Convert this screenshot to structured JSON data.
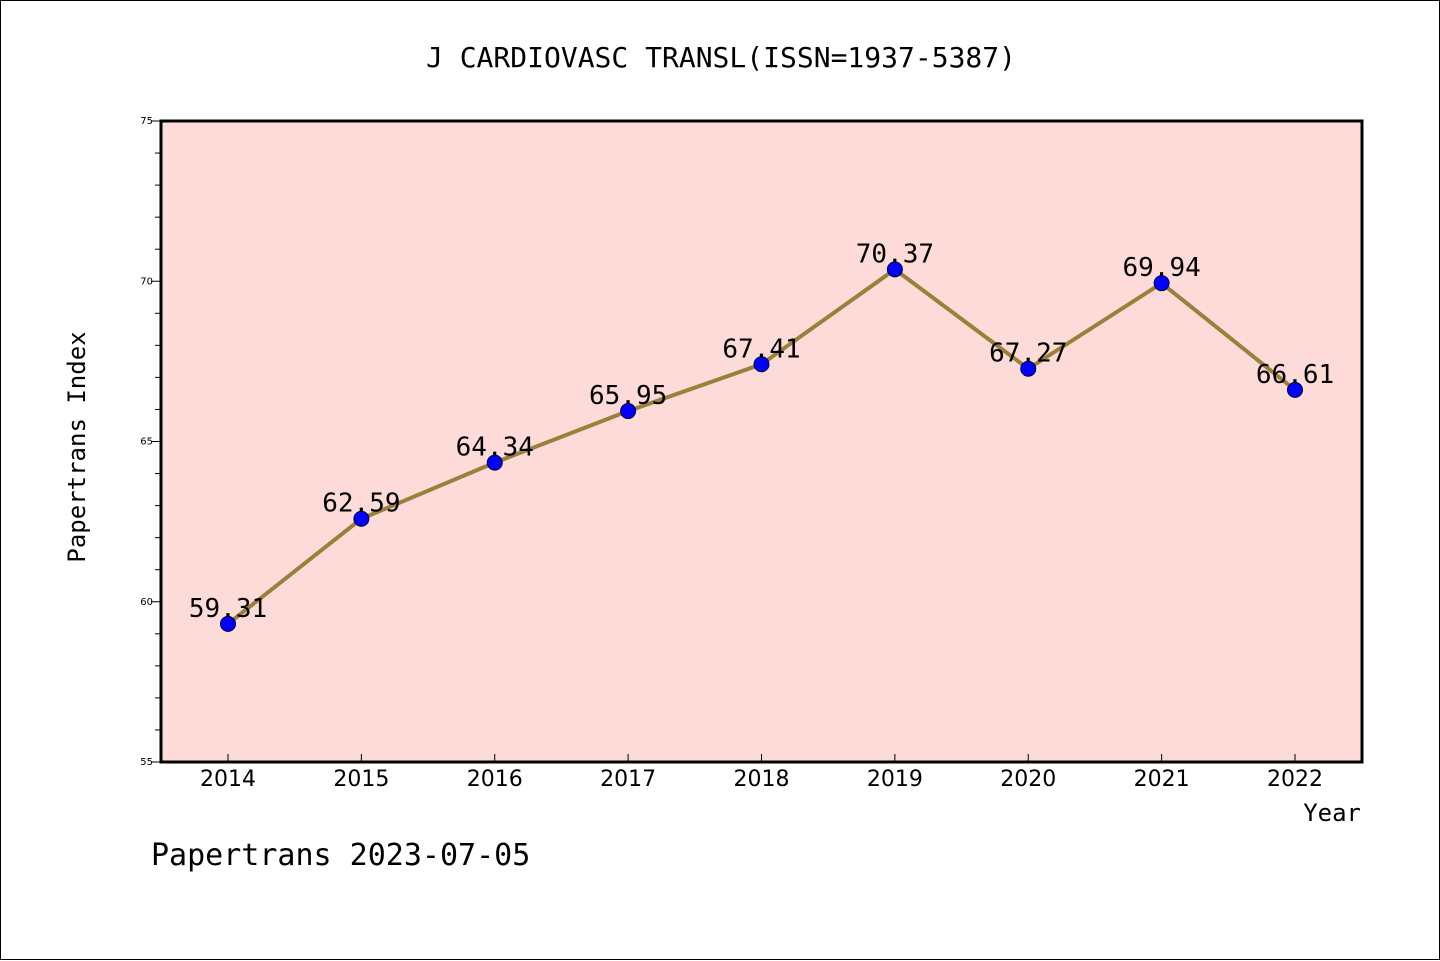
{
  "chart_data": {
    "type": "line",
    "title": "J CARDIOVASC TRANSL(ISSN=1937-5387)",
    "xlabel": "Year",
    "ylabel": "Papertrans Index",
    "categories": [
      "2014",
      "2015",
      "2016",
      "2017",
      "2018",
      "2019",
      "2020",
      "2021",
      "2022"
    ],
    "values": [
      59.31,
      62.59,
      64.34,
      65.95,
      67.41,
      70.37,
      67.27,
      69.94,
      66.61
    ],
    "data_labels": [
      "59.31",
      "62.59",
      "64.34",
      "65.95",
      "67.41",
      "70.37",
      "67.27",
      "69.94",
      "66.61"
    ],
    "ylim": [
      55,
      75
    ],
    "yticks": [
      "55",
      "60",
      "65",
      "70",
      "75"
    ],
    "grid": false,
    "line_color": "#9a803a",
    "marker_color": "#0000ff",
    "plot_background": "#fddbd8"
  },
  "footer": "Papertrans 2023-07-05"
}
